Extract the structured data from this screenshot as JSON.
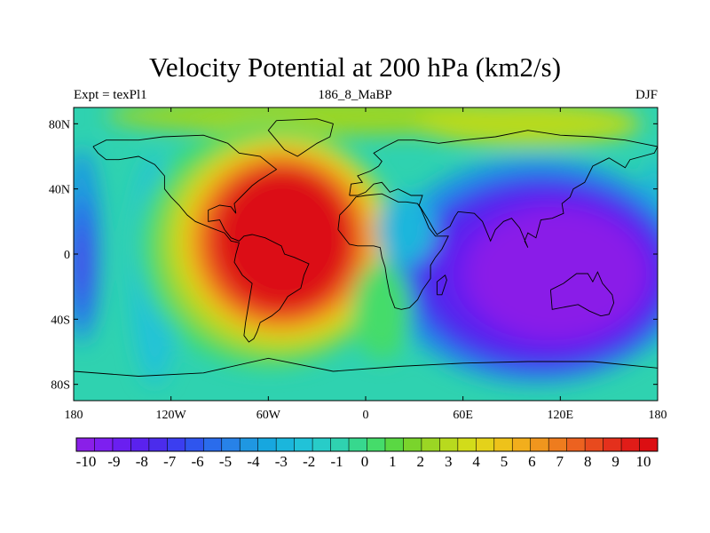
{
  "chart_data": {
    "type": "heatmap",
    "title": "Velocity Potential at 200 hPa (km2/s)",
    "subtitle_left": "Expt = texPl1",
    "subtitle_center": "186_8_MaBP",
    "subtitle_right": "DJF",
    "xlim": [
      -180,
      180
    ],
    "ylim": [
      -90,
      90
    ],
    "x_ticks": [
      {
        "value": -180,
        "label": "180"
      },
      {
        "value": -120,
        "label": "120W"
      },
      {
        "value": -60,
        "label": "60W"
      },
      {
        "value": 0,
        "label": "0"
      },
      {
        "value": 60,
        "label": "60E"
      },
      {
        "value": 120,
        "label": "120E"
      },
      {
        "value": 180,
        "label": "180"
      }
    ],
    "y_ticks": [
      {
        "value": 80,
        "label": "80N"
      },
      {
        "value": 40,
        "label": "40N"
      },
      {
        "value": 0,
        "label": "0"
      },
      {
        "value": -40,
        "label": "40S"
      },
      {
        "value": -80,
        "label": "80S"
      }
    ],
    "colorbar": {
      "labels": [
        "-10",
        "-9",
        "-8",
        "-7",
        "-6",
        "-5",
        "-4",
        "-3",
        "-2",
        "-1",
        "0",
        "1",
        "2",
        "3",
        "4",
        "5",
        "6",
        "7",
        "8",
        "9",
        "10"
      ],
      "colors": [
        "#8a1fe8",
        "#7d1ff0",
        "#6a1ff0",
        "#5a22ee",
        "#4b2cec",
        "#3b3ef0",
        "#2f55ee",
        "#2a6cec",
        "#2782e8",
        "#1f97e2",
        "#17a7df",
        "#1bb6dc",
        "#21c2d8",
        "#28ccc8",
        "#2fd2b0",
        "#37d88e",
        "#45dc6a",
        "#5ad843",
        "#7ad42c",
        "#9bd624",
        "#b8da1e",
        "#d2dc1a",
        "#e4d21a",
        "#eec21a",
        "#f2ae1c",
        "#f0961e",
        "#ee7c1e",
        "#ec6220",
        "#e84a1e",
        "#e4301c",
        "#e01c18",
        "#dc0e12"
      ]
    },
    "features": [
      {
        "name": "positive-centre",
        "lon": -55,
        "lat": 8,
        "value": 10
      },
      {
        "name": "negative-centre",
        "lon": 115,
        "lat": -12,
        "value": -10
      }
    ]
  }
}
